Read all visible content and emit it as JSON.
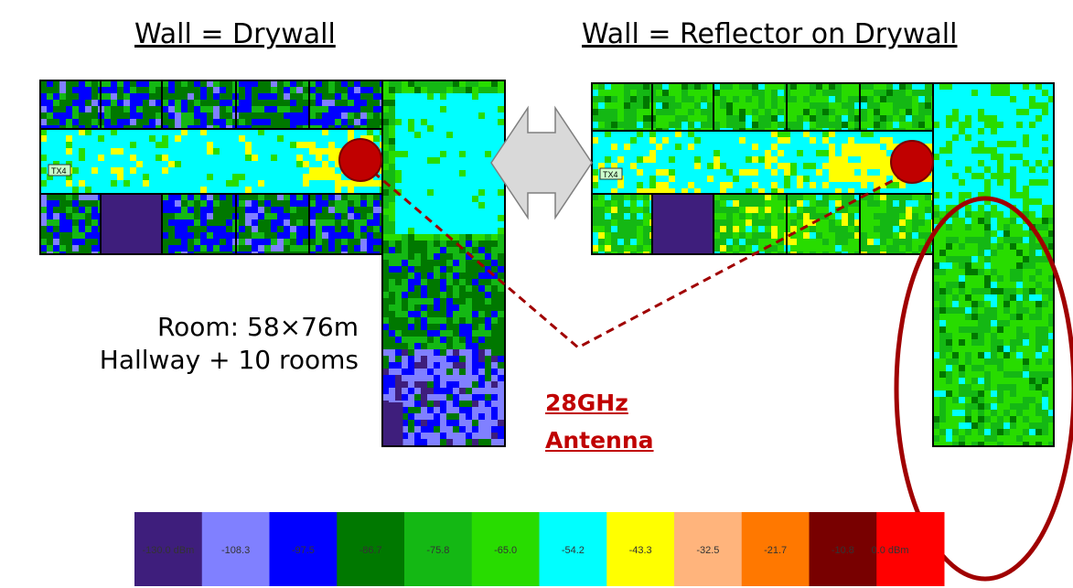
{
  "titles": {
    "left": "Wall = Drywall",
    "right": "Wall = Reflector on Drywall"
  },
  "room_info": {
    "line1": "Room: 58×76m",
    "line2": "Hallway + 10 rooms"
  },
  "antenna_label": {
    "line1": "28GHz",
    "line2": "Antenna"
  },
  "tx_label": "TX4",
  "legend": {
    "colors": [
      "#3e1e7c",
      "#8080ff",
      "#0000ff",
      "#007800",
      "#14b814",
      "#28dc00",
      "#00ffff",
      "#ffff00",
      "#ffb47c",
      "#ff7800",
      "#780000",
      "#ff0000"
    ],
    "labels": [
      "-130.0 dBm",
      "-108.3",
      "-97.5",
      "-86.7",
      "-75.8",
      "-65.0",
      "-54.2",
      "-43.3",
      "-32.5",
      "-21.7",
      "-10.8",
      "0.0 dBm"
    ]
  },
  "marker_color": "#c00000",
  "highlight_color": "#a00000"
}
